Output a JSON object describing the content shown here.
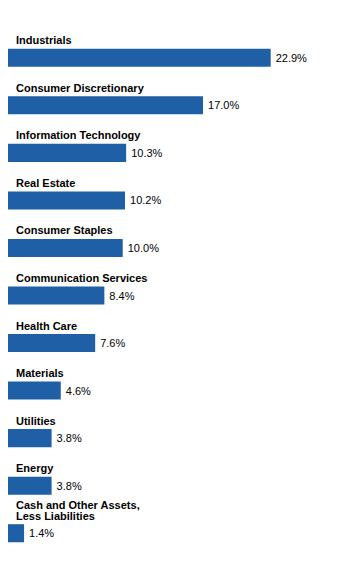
{
  "chart_data": {
    "type": "bar",
    "orientation": "horizontal",
    "categories": [
      "Industrials",
      "Consumer Discretionary",
      "Information Technology",
      "Real Estate",
      "Consumer Staples",
      "Communication Services",
      "Health Care",
      "Materials",
      "Utilities",
      "Energy",
      "Cash and Other Assets,\nLess Liabilities"
    ],
    "values": [
      22.9,
      17.0,
      10.3,
      10.2,
      10.0,
      8.4,
      7.6,
      4.6,
      3.8,
      3.8,
      1.4
    ],
    "value_labels": [
      "22.9%",
      "17.0%",
      "10.3%",
      "10.2%",
      "10.0%",
      "8.4%",
      "7.6%",
      "4.6%",
      "3.8%",
      "3.8%",
      "1.4%"
    ],
    "data_labels": true,
    "color": "#1F5FA6",
    "xlim": [
      0,
      26.5
    ],
    "tick_labels": false,
    "grid": false
  }
}
